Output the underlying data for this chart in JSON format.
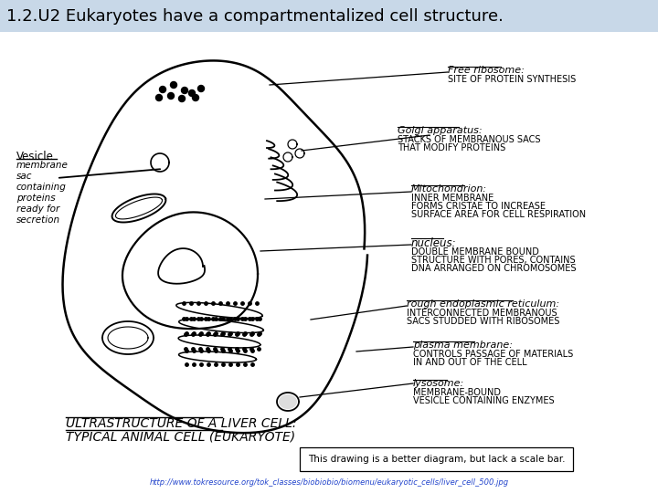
{
  "title": "1.2.U2 Eukaryotes have a compartmentalized cell structure.",
  "bg_color": "#dce8f0",
  "white": "#ffffff",
  "black": "#000000",
  "title_fontsize": 13,
  "vesicle_lines": [
    "Vesicle",
    "membrane",
    "sac",
    "containing",
    "proteins",
    "ready for",
    "secretion"
  ],
  "label_free_ribosome": "Free ribosome:",
  "label_free_ribosome_desc": "SITE OF PROTEIN SYNTHESIS",
  "label_golgi": "Golgi apparatus:",
  "label_golgi_desc1": "STACKS OF MEMBRANOUS SACS",
  "label_golgi_desc2": "THAT MODIFY PROTEINS",
  "label_mito": "Mitochondrion:",
  "label_mito_desc1": "INNER MEMBRANE",
  "label_mito_desc2": "FORMS CRISTAE TO INCREASE",
  "label_mito_desc3": "SURFACE AREA FOR CELL RESPIRATION",
  "label_nucleus": "nucleus:",
  "label_nucleus_desc1": "DOUBLE MEMBRANE BOUND",
  "label_nucleus_desc2": "STRUCTURE WITH PORES, CONTAINS",
  "label_nucleus_desc3": "DNA ARRANGED ON CHROMOSOMES",
  "label_rer": "rough endoplasmic reticulum:",
  "label_rer_desc1": "INTERCONNECTED MEMBRANOUS",
  "label_rer_desc2": "SACS STUDDED WITH RIBOSOMES",
  "label_plasma": "plasma membrane:",
  "label_plasma_desc1": "CONTROLS PASSAGE OF MATERIALS",
  "label_plasma_desc2": "IN AND OUT OF THE CELL",
  "label_lysosome": "lysosome:",
  "label_lysosome_desc1": "MEMBRANE-BOUND",
  "label_lysosome_desc2": "VESICLE CONTAINING ENZYMES",
  "ultra_line1": "ULTRASTRUCTURE OF A LIVER CELL:",
  "ultra_line2": "TYPICAL ANIMAL CELL (EUKARYOTE)",
  "bottom_note": "This drawing is a better diagram, but lack a scale bar.",
  "url": "http://www.tokresource.org/tok_classes/biobiobio/biomenu/eukaryotic_cells/liver_cell_500.jpg"
}
